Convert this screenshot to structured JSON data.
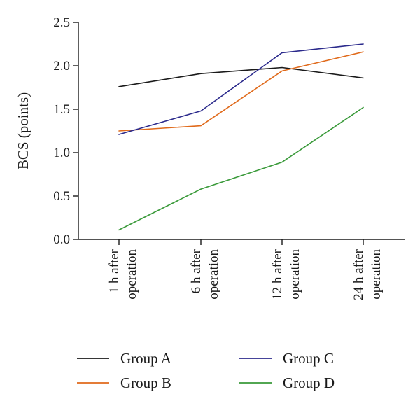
{
  "chart_data": {
    "type": "line",
    "title": "",
    "xlabel": "",
    "ylabel": "BCS (points)",
    "ylim": [
      0,
      2.5
    ],
    "yticks": [
      "0.0",
      "0.5",
      "1.0",
      "1.5",
      "2.0",
      "2.5"
    ],
    "categories": [
      [
        "1 h after",
        "operation"
      ],
      [
        "6 h after",
        "operation"
      ],
      [
        "12 h after",
        "operation"
      ],
      [
        "24 h after",
        "operation"
      ]
    ],
    "grid": false,
    "legend_position": "bottom",
    "series": [
      {
        "name": "Group A",
        "color": "#1a1a1a",
        "values": [
          1.76,
          1.91,
          1.98,
          1.86
        ]
      },
      {
        "name": "Group B",
        "color": "#e06a1b",
        "values": [
          1.25,
          1.31,
          1.94,
          2.16
        ]
      },
      {
        "name": "Group C",
        "color": "#2b2a8c",
        "values": [
          1.21,
          1.48,
          2.15,
          2.25
        ]
      },
      {
        "name": "Group D",
        "color": "#3a9a3a",
        "values": [
          0.11,
          0.58,
          0.89,
          1.52
        ]
      }
    ]
  }
}
